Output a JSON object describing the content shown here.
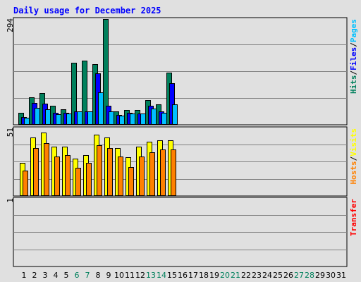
{
  "chart_data": {
    "type": "bar",
    "title": "Daily usage for December 2025",
    "x": [
      "1",
      "2",
      "3",
      "4",
      "5",
      "6",
      "7",
      "8",
      "9",
      "10",
      "11",
      "12",
      "13",
      "14",
      "15",
      "16",
      "17",
      "18",
      "19",
      "20",
      "21",
      "22",
      "23",
      "24",
      "25",
      "26",
      "27",
      "28",
      "29",
      "30",
      "31"
    ],
    "weekend_days": [
      6,
      7,
      13,
      14,
      20,
      21,
      27,
      28
    ],
    "panels": [
      {
        "name": "hits-files-pages",
        "ymax_label": "294",
        "ylim": [
          0,
          294
        ],
        "side_label": [
          {
            "text": "Hits",
            "color": "#00805c"
          },
          {
            "text": "/",
            "color": "#000000"
          },
          {
            "text": "Files",
            "color": "#0000ff"
          },
          {
            "text": "/",
            "color": "#000000"
          },
          {
            "text": "Pages",
            "color": "#00c0ff"
          }
        ],
        "series": [
          {
            "name": "Hits",
            "color": "#00805c",
            "values": [
              34,
              76,
              88,
              52,
              44,
              172,
              178,
              168,
              294,
              38,
              42,
              42,
              68,
              56,
              146,
              0,
              0,
              0,
              0,
              0,
              0,
              0,
              0,
              0,
              0,
              0,
              0,
              0,
              0,
              0,
              0
            ]
          },
          {
            "name": "Files",
            "color": "#0000ff",
            "values": [
              22,
              60,
              58,
              34,
              34,
              38,
              38,
              144,
              52,
              28,
              34,
              32,
              52,
              38,
              116,
              0,
              0,
              0,
              0,
              0,
              0,
              0,
              0,
              0,
              0,
              0,
              0,
              0,
              0,
              0,
              0
            ]
          },
          {
            "name": "Pages",
            "color": "#00c0ff",
            "values": [
              20,
              48,
              44,
              30,
              32,
              38,
              38,
              90,
              38,
              26,
              32,
              32,
              46,
              34,
              56,
              0,
              0,
              0,
              0,
              0,
              0,
              0,
              0,
              0,
              0,
              0,
              0,
              0,
              0,
              0,
              0
            ]
          }
        ]
      },
      {
        "name": "visits-hosts",
        "ymax_label": "51",
        "ylim": [
          0,
          51
        ],
        "side_label": [
          {
            "text": "Hosts",
            "color": "#ff8000"
          },
          {
            "text": "/",
            "color": "#000000"
          },
          {
            "text": "Visits",
            "color": "#ffff00"
          }
        ],
        "series": [
          {
            "name": "Visits",
            "color": "#ffff00",
            "values": [
              25,
              44,
              48,
              37,
              37,
              28,
              31,
              46,
              44,
              36,
              29,
              37,
              41,
              42,
              42,
              0,
              0,
              0,
              0,
              0,
              0,
              0,
              0,
              0,
              0,
              0,
              0,
              0,
              0,
              0,
              0
            ]
          },
          {
            "name": "Hosts",
            "color": "#ff8000",
            "values": [
              19,
              36,
              40,
              30,
              31,
              21,
              25,
              38,
              36,
              30,
              22,
              30,
              33,
              35,
              35,
              0,
              0,
              0,
              0,
              0,
              0,
              0,
              0,
              0,
              0,
              0,
              0,
              0,
              0,
              0,
              0
            ]
          }
        ]
      },
      {
        "name": "transfer",
        "ymax_label": "1",
        "ylim": [
          0,
          1
        ],
        "side_label": [
          {
            "text": "Transfer",
            "color": "#ff0000"
          }
        ],
        "series": [
          {
            "name": "Transfer",
            "color": "#ff0000",
            "values": [
              0,
              0,
              0,
              0,
              0,
              0,
              0,
              0,
              0,
              0,
              0,
              0,
              0,
              0,
              0,
              0,
              0,
              0,
              0,
              0,
              0,
              0,
              0,
              0,
              0,
              0,
              0,
              0,
              0,
              0,
              0
            ]
          }
        ]
      }
    ]
  },
  "colors": {
    "background": "#e0e0e0",
    "title": "#0000ff",
    "weekday_label": "#000000",
    "weekend_label": "#00805c",
    "outline": "#000000"
  }
}
